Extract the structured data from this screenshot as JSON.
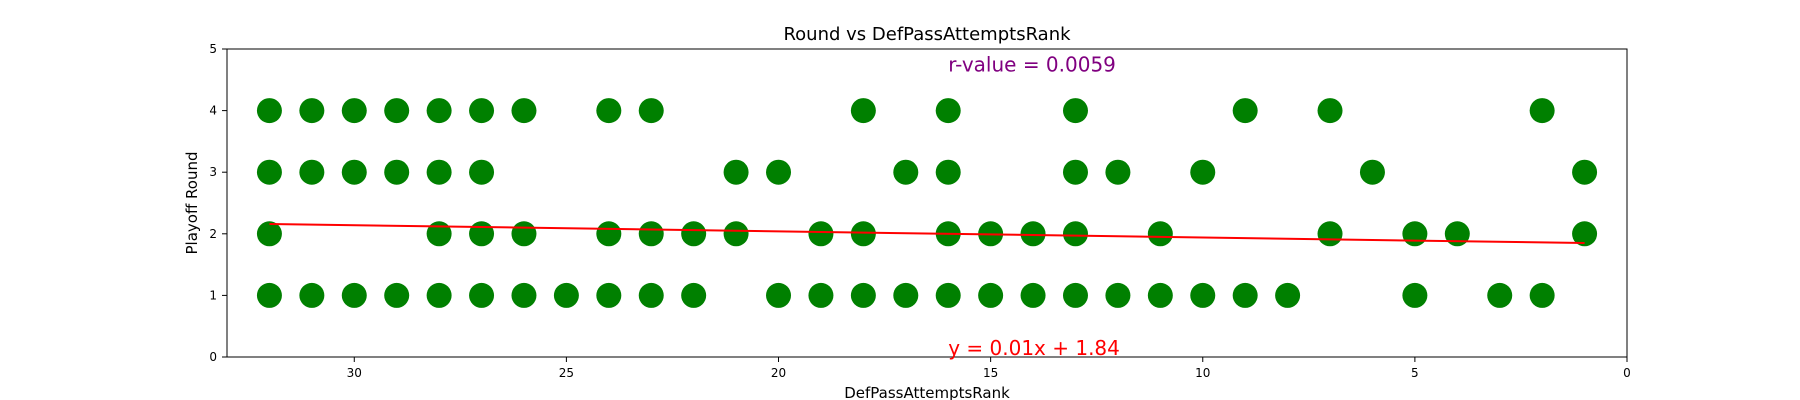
{
  "chart_data": {
    "type": "scatter",
    "title": "Round vs DefPassAttemptsRank",
    "xlabel": "DefPassAttemptsRank",
    "ylabel": "Playoff Round",
    "xlim": [
      33,
      0
    ],
    "ylim": [
      0,
      5
    ],
    "x_inverted": true,
    "xticks": [
      30,
      25,
      20,
      15,
      10,
      5,
      0
    ],
    "yticks": [
      0,
      1,
      2,
      3,
      4,
      5
    ],
    "grid": false,
    "point_color": "#008000",
    "line_color": "#ff0000",
    "annotation_r_color": "#800080",
    "annotation_eq_color": "#ff0000",
    "points": [
      [
        32,
        4
      ],
      [
        31,
        4
      ],
      [
        30,
        4
      ],
      [
        29,
        4
      ],
      [
        28,
        4
      ],
      [
        27,
        4
      ],
      [
        26,
        4
      ],
      [
        24,
        4
      ],
      [
        23,
        4
      ],
      [
        18,
        4
      ],
      [
        16,
        4
      ],
      [
        13,
        4
      ],
      [
        9,
        4
      ],
      [
        7,
        4
      ],
      [
        2,
        4
      ],
      [
        32,
        3
      ],
      [
        31,
        3
      ],
      [
        30,
        3
      ],
      [
        29,
        3
      ],
      [
        28,
        3
      ],
      [
        27,
        3
      ],
      [
        21,
        3
      ],
      [
        20,
        3
      ],
      [
        17,
        3
      ],
      [
        16,
        3
      ],
      [
        13,
        3
      ],
      [
        12,
        3
      ],
      [
        10,
        3
      ],
      [
        6,
        3
      ],
      [
        1,
        3
      ],
      [
        32,
        2
      ],
      [
        28,
        2
      ],
      [
        27,
        2
      ],
      [
        26,
        2
      ],
      [
        24,
        2
      ],
      [
        23,
        2
      ],
      [
        22,
        2
      ],
      [
        21,
        2
      ],
      [
        19,
        2
      ],
      [
        18,
        2
      ],
      [
        16,
        2
      ],
      [
        15,
        2
      ],
      [
        14,
        2
      ],
      [
        13,
        2
      ],
      [
        11,
        2
      ],
      [
        7,
        2
      ],
      [
        5,
        2
      ],
      [
        4,
        2
      ],
      [
        1,
        2
      ],
      [
        32,
        1
      ],
      [
        31,
        1
      ],
      [
        30,
        1
      ],
      [
        29,
        1
      ],
      [
        28,
        1
      ],
      [
        27,
        1
      ],
      [
        26,
        1
      ],
      [
        25,
        1
      ],
      [
        24,
        1
      ],
      [
        23,
        1
      ],
      [
        22,
        1
      ],
      [
        20,
        1
      ],
      [
        19,
        1
      ],
      [
        18,
        1
      ],
      [
        17,
        1
      ],
      [
        16,
        1
      ],
      [
        15,
        1
      ],
      [
        14,
        1
      ],
      [
        13,
        1
      ],
      [
        12,
        1
      ],
      [
        11,
        1
      ],
      [
        10,
        1
      ],
      [
        9,
        1
      ],
      [
        8,
        1
      ],
      [
        5,
        1
      ],
      [
        3,
        1
      ],
      [
        2,
        1
      ]
    ],
    "trendline": {
      "slope": 0.01,
      "intercept": 1.84,
      "x_range": [
        32,
        1
      ]
    },
    "annotations": {
      "r_value": "r-value = 0.0059",
      "equation": "y = 0.01x + 1.84"
    }
  }
}
